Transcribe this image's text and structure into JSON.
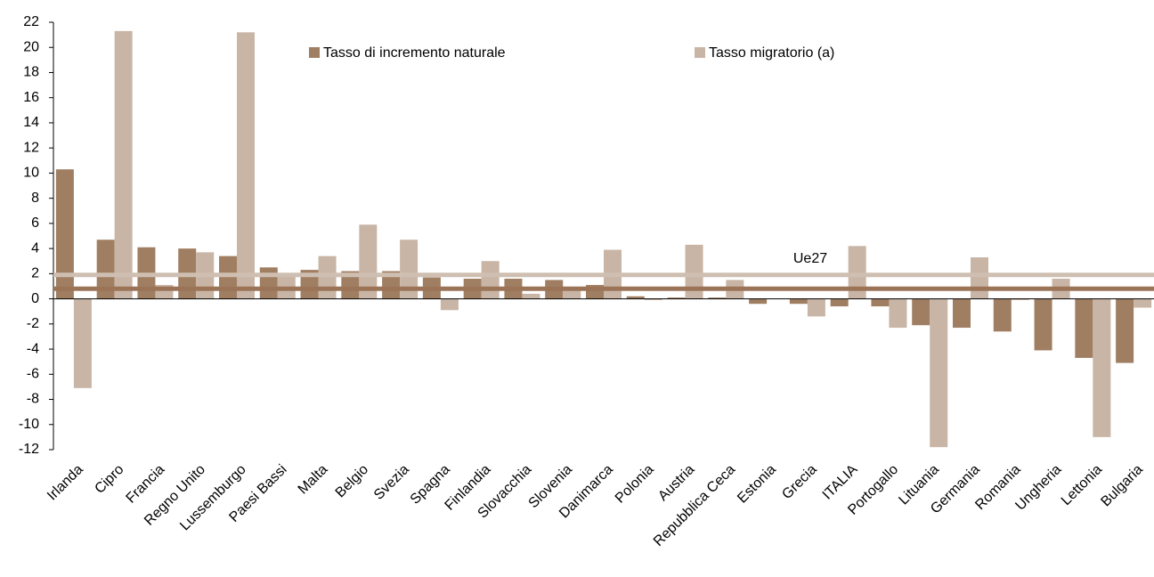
{
  "chart_data": {
    "type": "bar",
    "categories": [
      "Irlanda",
      "Cipro",
      "Francia",
      "Regno Unito",
      "Lussemburgo",
      "Paesi Bassi",
      "Malta",
      "Belgio",
      "Svezia",
      "Spagna",
      "Finlandia",
      "Slovacchia",
      "Slovenia",
      "Danimarca",
      "Polonia",
      "Austria",
      "Repubblica Ceca",
      "Estonia",
      "Grecia",
      "ITALIA",
      "Portogallo",
      "Lituania",
      "Germania",
      "Romania",
      "Ungheria",
      "Lettonia",
      "Bulgaria"
    ],
    "series": [
      {
        "name": "Tasso di incremento naturale",
        "color": "#a07e62",
        "values": [
          10.3,
          4.7,
          4.1,
          4.0,
          3.4,
          2.5,
          2.3,
          2.2,
          2.2,
          1.7,
          1.6,
          1.6,
          1.5,
          1.1,
          0.2,
          0.1,
          0.1,
          -0.4,
          -0.4,
          -0.6,
          -0.6,
          -2.1,
          -2.3,
          -2.6,
          -4.1,
          -4.7,
          -5.1
        ]
      },
      {
        "name": "Tasso migratorio (a)",
        "color": "#c9b5a5",
        "values": [
          -7.1,
          21.3,
          1.1,
          3.7,
          21.2,
          1.9,
          3.4,
          5.9,
          4.7,
          -0.9,
          3.0,
          0.4,
          0.8,
          3.9,
          -0.1,
          4.3,
          1.5,
          0.0,
          -1.4,
          4.2,
          -2.3,
          -11.8,
          3.3,
          -0.1,
          1.6,
          -11.0,
          -0.7
        ]
      }
    ],
    "reference_lines": [
      {
        "value": 0.8,
        "color": "#9b7458"
      },
      {
        "value": 1.9,
        "color": "#cfbfb2"
      }
    ],
    "reference_label": "Ue27",
    "ylim": [
      -12,
      22
    ],
    "yticks": [
      -12,
      -10,
      -8,
      -6,
      -4,
      -2,
      0,
      2,
      4,
      6,
      8,
      10,
      12,
      14,
      16,
      18,
      20,
      22
    ],
    "grid": false,
    "legend": "top"
  }
}
